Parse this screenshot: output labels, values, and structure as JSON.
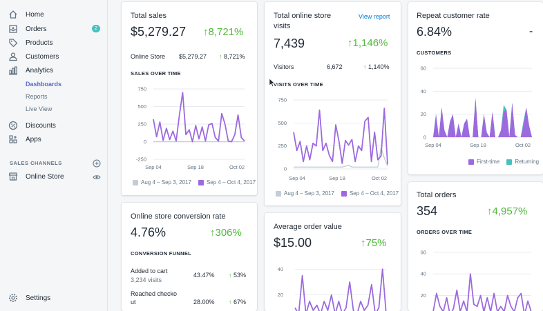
{
  "sidebar": {
    "home": "Home",
    "orders": "Orders",
    "orders_badge": "2",
    "products": "Products",
    "customers": "Customers",
    "analytics": "Analytics",
    "dashboards": "Dashboards",
    "reports": "Reports",
    "live_view": "Live View",
    "discounts": "Discounts",
    "apps": "Apps",
    "sales_channels": "SALES CHANNELS",
    "online_store": "Online Store",
    "settings": "Settings"
  },
  "total_sales": {
    "title": "Total sales",
    "value": "$5,279.27",
    "growth": "8,721%",
    "row_label": "Online Store",
    "row_value": "$5,279.27",
    "row_growth": "8,721%",
    "section": "SALES OVER TIME",
    "legend_prev": "Aug 4 – Sep 3, 2017",
    "legend_curr": "Sep 4 – Oct 4, 2017"
  },
  "online_visits": {
    "title": "Total online store visits",
    "link": "View report",
    "value": "7,439",
    "growth": "1,146%",
    "row_label": "Visitors",
    "row_value": "6,672",
    "row_growth": "1,140%",
    "section": "VISITS OVER TIME",
    "legend_prev": "Aug 4 – Sep 3, 2017",
    "legend_curr": "Sep 4 – Oct 4, 2017"
  },
  "repeat_rate": {
    "title": "Repeat customer rate",
    "value": "6.84%",
    "growth": "-",
    "section": "CUSTOMERS",
    "legend_first": "First-time",
    "legend_returning": "Returning"
  },
  "conversion": {
    "title": "Online store conversion rate",
    "value": "4.76%",
    "growth": "306%",
    "section": "CONVERSION FUNNEL",
    "rows": [
      {
        "label": "Added to cart",
        "sub": "3,234 visits",
        "pct": "43.47%",
        "growth": "53%"
      },
      {
        "label": "Reached checko",
        "label2": "ut",
        "pct": "28.00%",
        "growth": "67%"
      }
    ]
  },
  "aov": {
    "title": "Average order value",
    "value": "$15.00",
    "growth": "75%"
  },
  "total_orders": {
    "title": "Total orders",
    "value": "354",
    "growth": "4,957%",
    "section": "ORDERS OVER TIME"
  },
  "chart_data": [
    {
      "type": "line",
      "name_ref": "sales",
      "x_ticks": [
        "Sep 04",
        "Sep 18",
        "Oct 02"
      ],
      "y_ticks": [
        750,
        500,
        250,
        0,
        -250
      ],
      "ylim": [
        -250,
        750
      ],
      "series": [
        {
          "name": "Sep 4 – Oct 4, 2017",
          "values": [
            320,
            70,
            280,
            20,
            190,
            30,
            150,
            10,
            380,
            700,
            100,
            170,
            0,
            230,
            40,
            210,
            10,
            240,
            260,
            60,
            10,
            400,
            250,
            10,
            0,
            100,
            380,
            60,
            10
          ]
        },
        {
          "name": "Aug 4 – Sep 3, 2017",
          "values": [
            0,
            0,
            0,
            0,
            0,
            0,
            0,
            0,
            0,
            0,
            0,
            0,
            0,
            0,
            0,
            0,
            0,
            0,
            0,
            0,
            0,
            0,
            0,
            0,
            0,
            0,
            0,
            0,
            0
          ]
        }
      ],
      "colors": {
        "current": "#9c6ade",
        "previous": "#c4cdd5"
      }
    },
    {
      "type": "line",
      "name_ref": "visits",
      "x_ticks": [
        "Sep 04",
        "Sep 18",
        "Oct 02"
      ],
      "y_ticks": [
        750,
        500,
        250,
        0
      ],
      "ylim": [
        0,
        750
      ],
      "series": [
        {
          "name": "Sep 4 – Oct 4, 2017",
          "values": [
            400,
            200,
            300,
            80,
            250,
            100,
            280,
            250,
            640,
            200,
            280,
            150,
            80,
            480,
            300,
            60,
            310,
            260,
            320,
            80,
            250,
            200,
            520,
            560,
            80,
            400,
            100,
            140,
            660,
            50
          ]
        },
        {
          "name": "Aug 4 – Sep 3, 2017",
          "values": [
            20,
            20,
            20,
            20,
            20,
            20,
            20,
            20,
            20,
            20,
            20,
            20,
            20,
            20,
            20,
            20,
            30,
            40,
            20,
            20,
            20,
            20,
            20,
            20,
            20,
            20,
            20,
            230,
            120,
            30
          ]
        }
      ]
    },
    {
      "type": "area",
      "name_ref": "customers",
      "x_ticks": [
        "Sep 04",
        "Sep 18",
        "Oct 02"
      ],
      "y_ticks": [
        60,
        40,
        20,
        0
      ],
      "ylim": [
        0,
        60
      ],
      "series": [
        {
          "name": "First-time",
          "values": [
            0,
            20,
            0,
            26,
            6,
            0,
            14,
            20,
            0,
            12,
            0,
            12,
            16,
            0,
            0,
            34,
            0,
            0,
            20,
            4,
            0,
            22,
            0,
            0,
            6,
            22,
            24,
            0,
            30,
            2,
            0,
            0,
            10,
            26,
            10,
            0
          ]
        },
        {
          "name": "Returning",
          "values": [
            0,
            0,
            0,
            0,
            0,
            0,
            0,
            0,
            0,
            0,
            0,
            0,
            0,
            0,
            0,
            0,
            0,
            0,
            0,
            0,
            0,
            0,
            0,
            0,
            0,
            6,
            0,
            0,
            0,
            0,
            0,
            0,
            4,
            0,
            0,
            0
          ]
        }
      ],
      "colors": {
        "first_time": "#9c6ade",
        "returning": "#47c1bf"
      }
    },
    {
      "type": "line",
      "name_ref": "aov",
      "y_ticks": [
        40,
        20
      ],
      "ylim": [
        0,
        45
      ],
      "series": [
        {
          "name": "current",
          "values": [
            10,
            5,
            35,
            5,
            15,
            8,
            12,
            5,
            15,
            8,
            20,
            5,
            15,
            5,
            10,
            30,
            8,
            5,
            15,
            8,
            12,
            28,
            5,
            10,
            40,
            5
          ]
        }
      ]
    },
    {
      "type": "line",
      "name_ref": "orders",
      "y_ticks": [
        60,
        40,
        20
      ],
      "ylim": [
        0,
        65
      ],
      "series": [
        {
          "name": "current",
          "values": [
            5,
            22,
            10,
            5,
            18,
            2,
            8,
            25,
            5,
            15,
            5,
            40,
            12,
            10,
            20,
            5,
            18,
            5,
            22,
            5,
            10,
            5,
            20,
            10,
            5,
            18,
            22,
            2,
            15,
            5
          ]
        }
      ]
    }
  ]
}
